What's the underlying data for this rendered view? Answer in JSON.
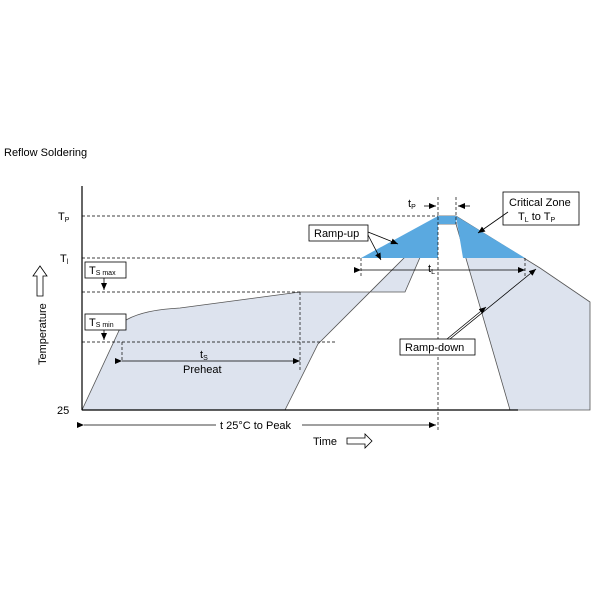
{
  "title": "Reflow Soldering",
  "axes": {
    "y_label": "Temperature",
    "x_label": "Time"
  },
  "y_ticks": {
    "tp": {
      "main": "T",
      "sub": "P"
    },
    "tl": {
      "main": "T",
      "sub": "l"
    },
    "base": "25"
  },
  "boxes": {
    "ts_max": {
      "main": "T",
      "sub": "S max"
    },
    "ts_min": {
      "main": "T",
      "sub": "S min"
    }
  },
  "dimensions": {
    "tp": {
      "main": "t",
      "sub": "P"
    },
    "tl": {
      "main": "t",
      "sub": "L"
    },
    "ts": {
      "main": "t",
      "sub": "S"
    },
    "preheat": "Preheat",
    "t25_to_peak": "t 25°C to Peak"
  },
  "callouts": {
    "ramp_up": "Ramp-up",
    "ramp_down": "Ramp-down",
    "critical_zone": "Critical Zone",
    "critical_zone_line2": {
      "a": "T",
      "a_sub": "L",
      "mid": " to ",
      "b": "T",
      "b_sub": "P"
    }
  },
  "colors": {
    "band_fill": "#dde3ee",
    "critical_fill": "#5aa9e0",
    "line": "#333333"
  }
}
